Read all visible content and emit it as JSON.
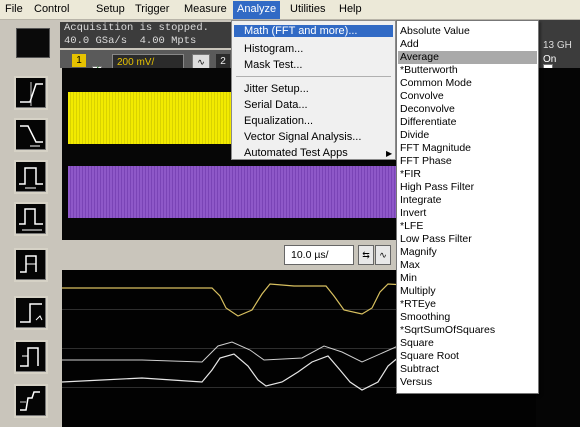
{
  "menubar": {
    "items": [
      "File",
      "Control",
      "Setup",
      "Trigger",
      "Measure",
      "Analyze",
      "Utilities",
      "Help"
    ],
    "active": "Analyze"
  },
  "status": {
    "line1": "Acquisition is stopped.",
    "line2": "40.0 GSa/s  4.00 Mpts"
  },
  "channel": {
    "number": "1",
    "scale": "200 mV/",
    "next": "2"
  },
  "right_panel": {
    "rate": "13 GH",
    "on_label": "On"
  },
  "timebase": {
    "value": "10.0 µs/"
  },
  "analyze_menu": {
    "items": [
      "Math (FFT and more)...",
      "Histogram...",
      "Mask Test...",
      "Jitter Setup...",
      "Serial Data...",
      "Equalization...",
      "Vector Signal Analysis...",
      "Automated Test Apps"
    ],
    "highlighted": "Math (FFT and more)..."
  },
  "math_submenu": {
    "items": [
      "Absolute Value",
      "Add",
      "Average",
      "*Butterworth",
      "Common Mode",
      "Convolve",
      "Deconvolve",
      "Differentiate",
      "Divide",
      "FFT Magnitude",
      "FFT Phase",
      "*FIR",
      "High Pass Filter",
      "Integrate",
      "Invert",
      "*LFE",
      "Low Pass Filter",
      "Magnify",
      "Max",
      "Min",
      "Multiply",
      "*RTEye",
      "Smoothing",
      "*SqrtSumOfSquares",
      "Square",
      "Square Root",
      "Subtract",
      "Versus"
    ],
    "highlighted": "Average"
  },
  "colors": {
    "ch1": "#f2ea00",
    "ch2": "#8e58c8",
    "menu_highlight": "#316ac5",
    "submenu_highlight": "#a9a9a9"
  },
  "tool_icons": [
    "edge-trigger-rising-icon",
    "edge-trigger-falling-icon",
    "pulse-width-icon",
    "pulse-width-run-icon",
    "setup-hold-icon",
    "timeout-icon",
    "transition-icon",
    "runt-icon"
  ]
}
